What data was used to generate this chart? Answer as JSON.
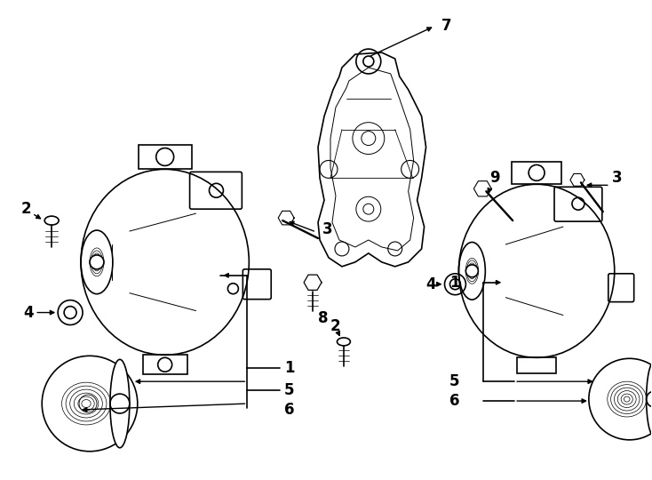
{
  "bg_color": "#ffffff",
  "line_color": "#000000",
  "line_width": 1.2,
  "fig_width": 7.34,
  "fig_height": 5.4,
  "dpi": 100
}
